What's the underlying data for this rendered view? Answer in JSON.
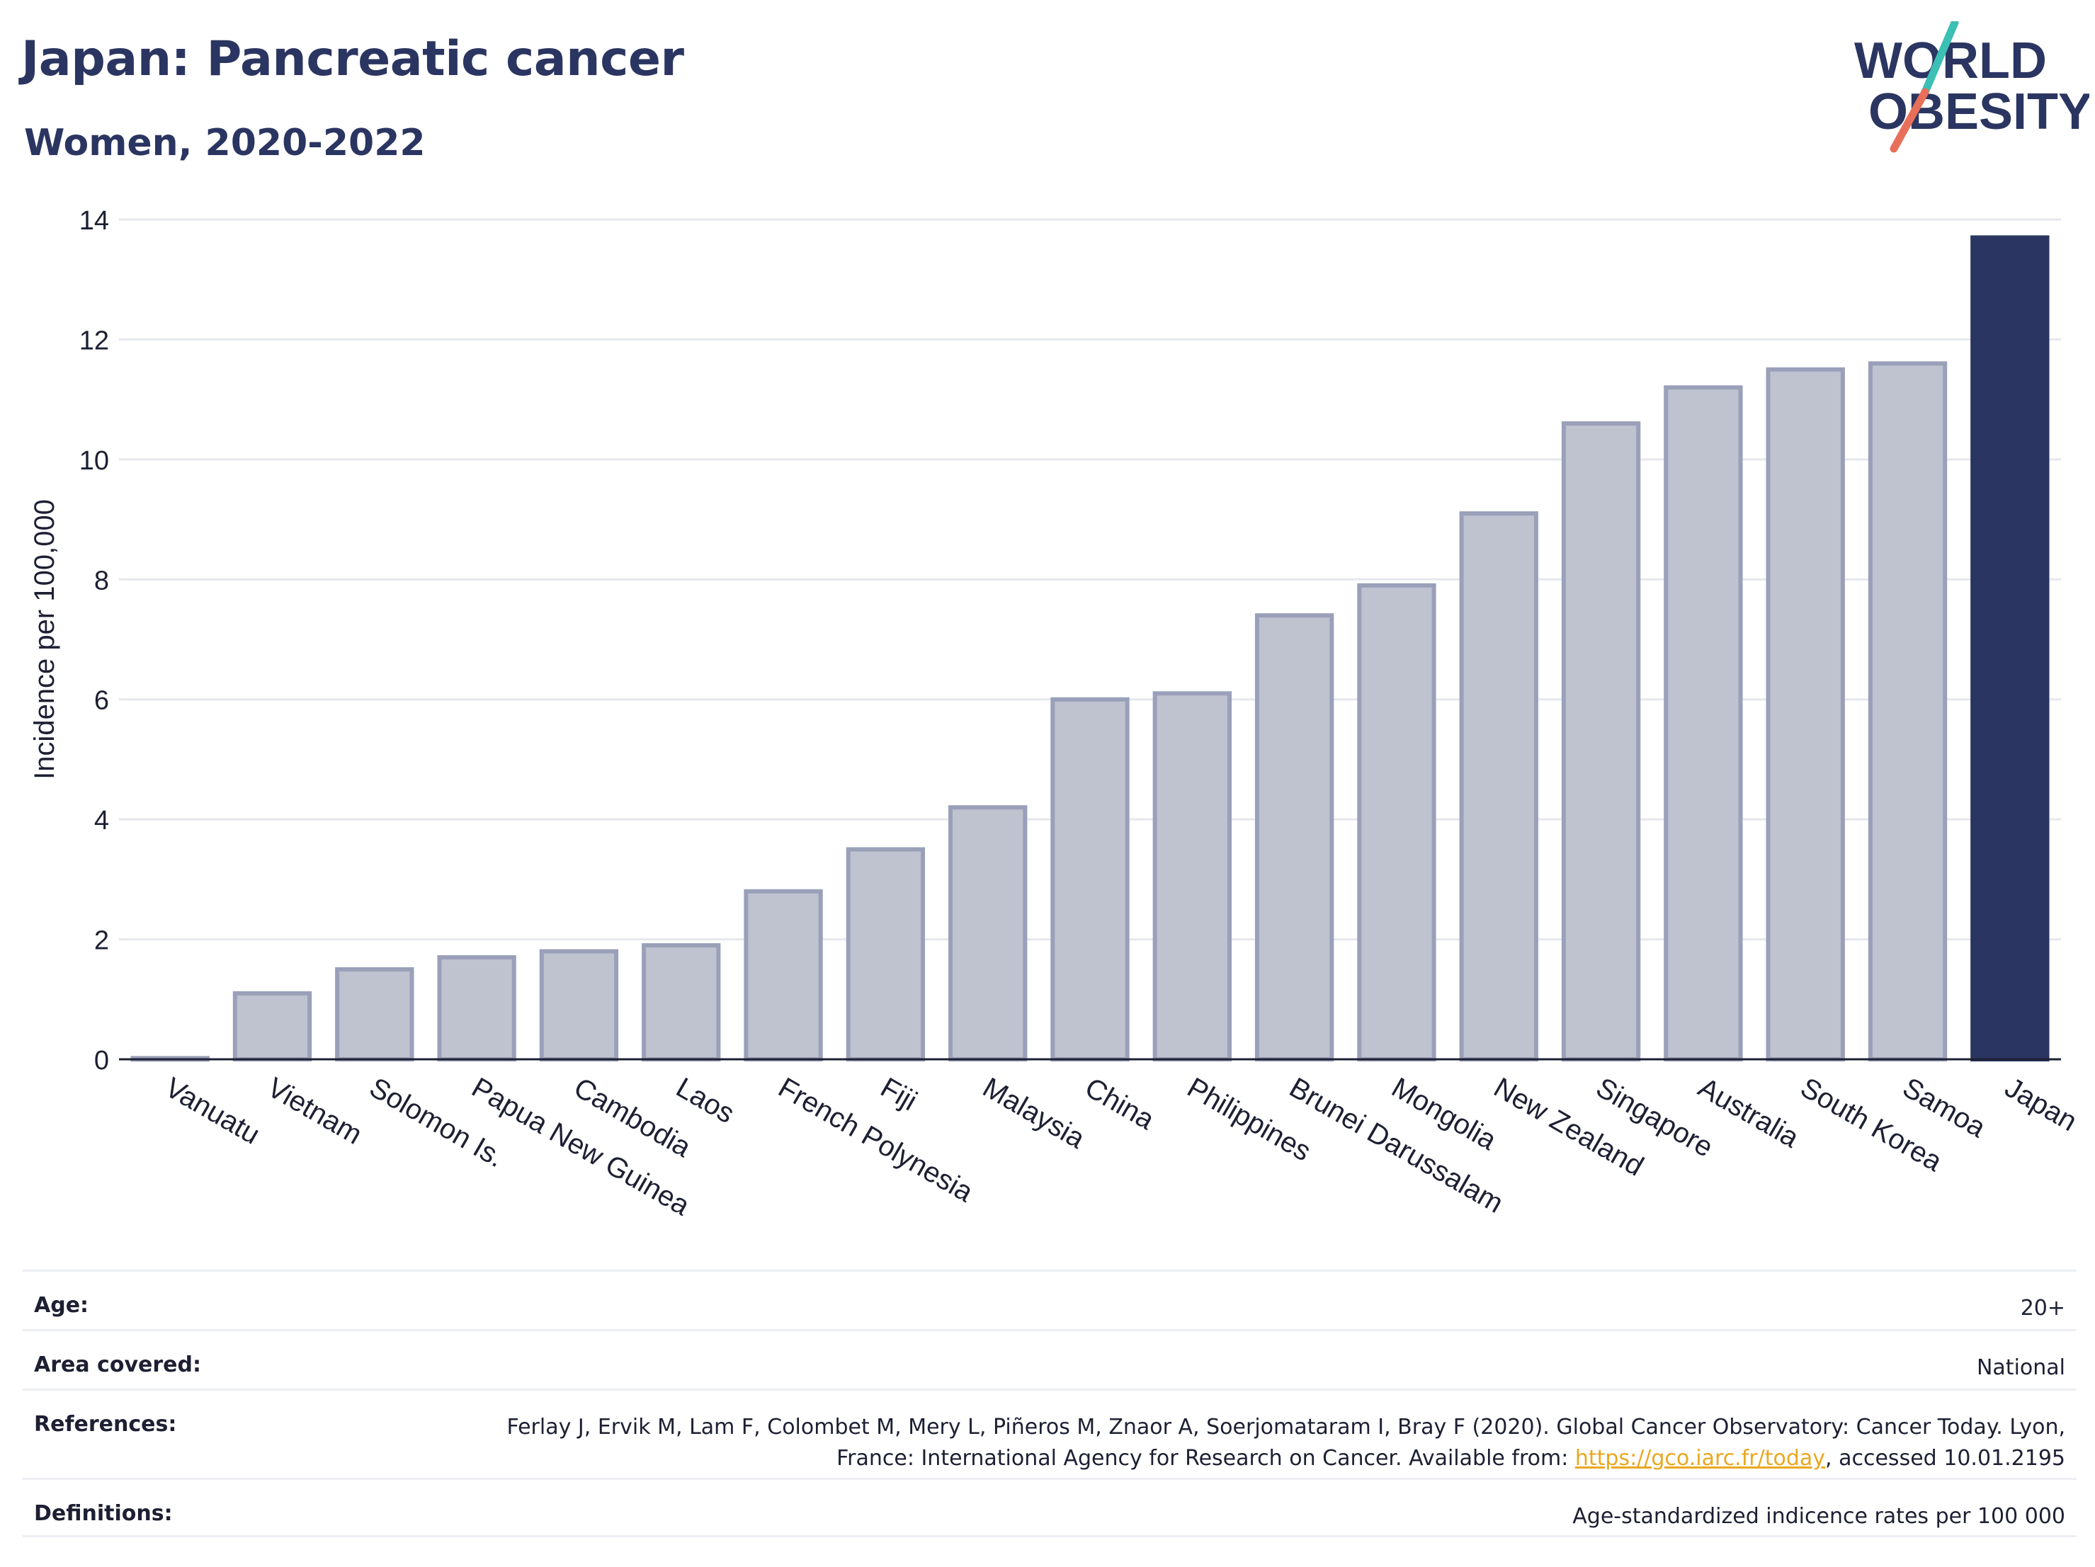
{
  "header": {
    "title": "Japan: Pancreatic cancer",
    "subtitle": "Women, 2020-2022"
  },
  "logo": {
    "line1": "WORLD",
    "line2": "OBESITY",
    "colors": {
      "text": "#2b3561",
      "slash_teal": "#3cbfb4",
      "slash_coral": "#e8705a"
    }
  },
  "chart_data": {
    "type": "bar",
    "title": "",
    "xlabel": "",
    "ylabel": "Incidence per 100,000",
    "ylim": [
      0,
      14
    ],
    "yticks": [
      0,
      2,
      4,
      6,
      8,
      10,
      12,
      14
    ],
    "grid": true,
    "categories": [
      "Vanuatu",
      "Vietnam",
      "Solomon Is.",
      "Papua New Guinea",
      "Cambodia",
      "Laos",
      "French Polynesia",
      "Fiji",
      "Malaysia",
      "China",
      "Philippines",
      "Brunei Darussalam",
      "Mongolia",
      "New Zealand",
      "Singapore",
      "Australia",
      "South Korea",
      "Samoa",
      "Japan"
    ],
    "values": [
      0.02,
      1.1,
      1.5,
      1.7,
      1.8,
      1.9,
      2.8,
      3.5,
      4.2,
      6.0,
      6.1,
      7.4,
      7.9,
      9.1,
      10.6,
      11.2,
      11.5,
      11.6,
      13.7
    ],
    "highlight": "Japan",
    "colors": {
      "bar_fill": "#bfc2cf",
      "bar_stroke": "#9aa0b9",
      "highlight_fill": "#2b3561",
      "grid": "#e6e8ee",
      "axis": "#1d2033"
    }
  },
  "meta": {
    "age_label": "Age:",
    "age_value": "20+",
    "area_label": "Area covered:",
    "area_value": "National",
    "references_label": "References:",
    "references_text_1": "Ferlay J, Ervik M, Lam F, Colombet M, Mery L, Piñeros M, Znaor A, Soerjomataram I, Bray F (2020). Global Cancer Observatory: Cancer Today. Lyon, France: International Agency for Research on Cancer. Available from: ",
    "references_link": "https://gco.iarc.fr/today",
    "references_text_2": ", accessed 10.01.2195",
    "definitions_label": "Definitions:",
    "definitions_value": "Age-standardized indicence rates per 100 000"
  }
}
